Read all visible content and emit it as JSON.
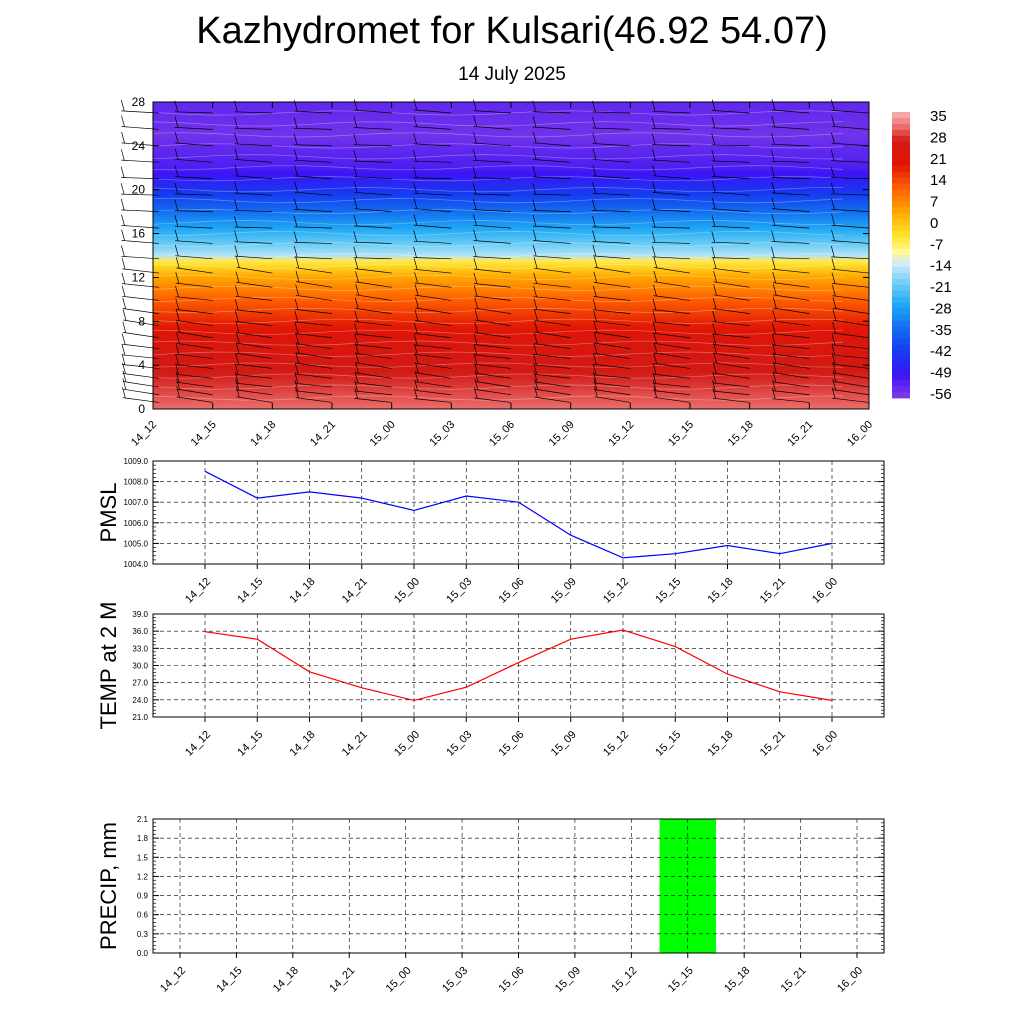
{
  "header": {
    "title": "Kazhydromet for Kulsari(46.92 54.07)",
    "subtitle": "14 July 2025"
  },
  "time_labels": [
    "14_12",
    "14_15",
    "14_18",
    "14_21",
    "15_00",
    "15_03",
    "15_06",
    "15_09",
    "15_12",
    "15_15",
    "15_18",
    "15_21",
    "16_00"
  ],
  "chart_data": [
    {
      "type": "heatmap",
      "name": "temperature-wind-profile",
      "x": [
        "14_12",
        "14_15",
        "14_18",
        "14_21",
        "15_00",
        "15_03",
        "15_06",
        "15_09",
        "15_12",
        "15_15",
        "15_18",
        "15_21",
        "16_00"
      ],
      "ylim": [
        0,
        28
      ],
      "yticks": [
        0,
        4,
        8,
        12,
        16,
        20,
        24,
        28
      ],
      "colorbar": {
        "labels": [
          "35",
          "28",
          "21",
          "14",
          "7",
          "0",
          "-7",
          "-14",
          "-21",
          "-28",
          "-35",
          "-42",
          "-49",
          "-56"
        ],
        "range": [
          -60,
          38
        ]
      },
      "profile": [
        {
          "y": 0,
          "value": 33
        },
        {
          "y": 2,
          "value": 30
        },
        {
          "y": 4,
          "value": 27
        },
        {
          "y": 6,
          "value": 24
        },
        {
          "y": 8,
          "value": 18
        },
        {
          "y": 10,
          "value": 12
        },
        {
          "y": 12,
          "value": 4
        },
        {
          "y": 13.5,
          "value": -6
        },
        {
          "y": 14,
          "value": -16
        },
        {
          "y": 16,
          "value": -26
        },
        {
          "y": 18,
          "value": -36
        },
        {
          "y": 20,
          "value": -46
        },
        {
          "y": 22,
          "value": -54
        },
        {
          "y": 25,
          "value": -58
        },
        {
          "y": 28,
          "value": -56
        }
      ],
      "wind_barbs": true
    },
    {
      "type": "line",
      "name": "pmsl",
      "ylabel": "PMSL",
      "x": [
        "14_12",
        "14_15",
        "14_18",
        "14_21",
        "15_00",
        "15_03",
        "15_06",
        "15_09",
        "15_12",
        "15_15",
        "15_18",
        "15_21",
        "16_00"
      ],
      "values": [
        1008.5,
        1007.2,
        1007.5,
        1007.2,
        1006.6,
        1007.3,
        1007.0,
        1005.4,
        1004.3,
        1004.5,
        1004.9,
        1004.5,
        1005.0
      ],
      "ylim": [
        1004.0,
        1009.0
      ],
      "yticks": [
        "1004.0",
        "1005.0",
        "1006.0",
        "1007.0",
        "1008.0",
        "1009.0"
      ],
      "color": "#0000ff",
      "grid": true
    },
    {
      "type": "line",
      "name": "temp-2m",
      "ylabel": "TEMP at 2 M",
      "x": [
        "14_12",
        "14_15",
        "14_18",
        "14_21",
        "15_00",
        "15_03",
        "15_06",
        "15_09",
        "15_12",
        "15_15",
        "15_18",
        "15_21",
        "16_00"
      ],
      "values": [
        35.9,
        34.6,
        28.9,
        26.1,
        23.9,
        26.2,
        30.5,
        34.6,
        36.2,
        33.3,
        28.5,
        25.4,
        23.9
      ],
      "ylim": [
        21.0,
        39.0
      ],
      "yticks": [
        "21.0",
        "24.0",
        "27.0",
        "30.0",
        "33.0",
        "36.0",
        "39.0"
      ],
      "color": "#ff0000",
      "grid": true
    },
    {
      "type": "bar",
      "name": "precip",
      "ylabel": "PRECIP, mm",
      "x": [
        "14_12",
        "14_15",
        "14_18",
        "14_21",
        "15_00",
        "15_03",
        "15_06",
        "15_09",
        "15_12",
        "15_15",
        "15_18",
        "15_21",
        "16_00"
      ],
      "values": [
        0,
        0,
        0,
        0,
        0,
        0,
        0,
        0,
        0,
        2.1,
        0,
        0,
        0
      ],
      "ylim": [
        0.0,
        2.1
      ],
      "yticks": [
        "0.0",
        "0.3",
        "0.6",
        "0.9",
        "1.2",
        "1.5",
        "1.8",
        "2.1"
      ],
      "color": "#00ff00",
      "grid": true
    }
  ]
}
